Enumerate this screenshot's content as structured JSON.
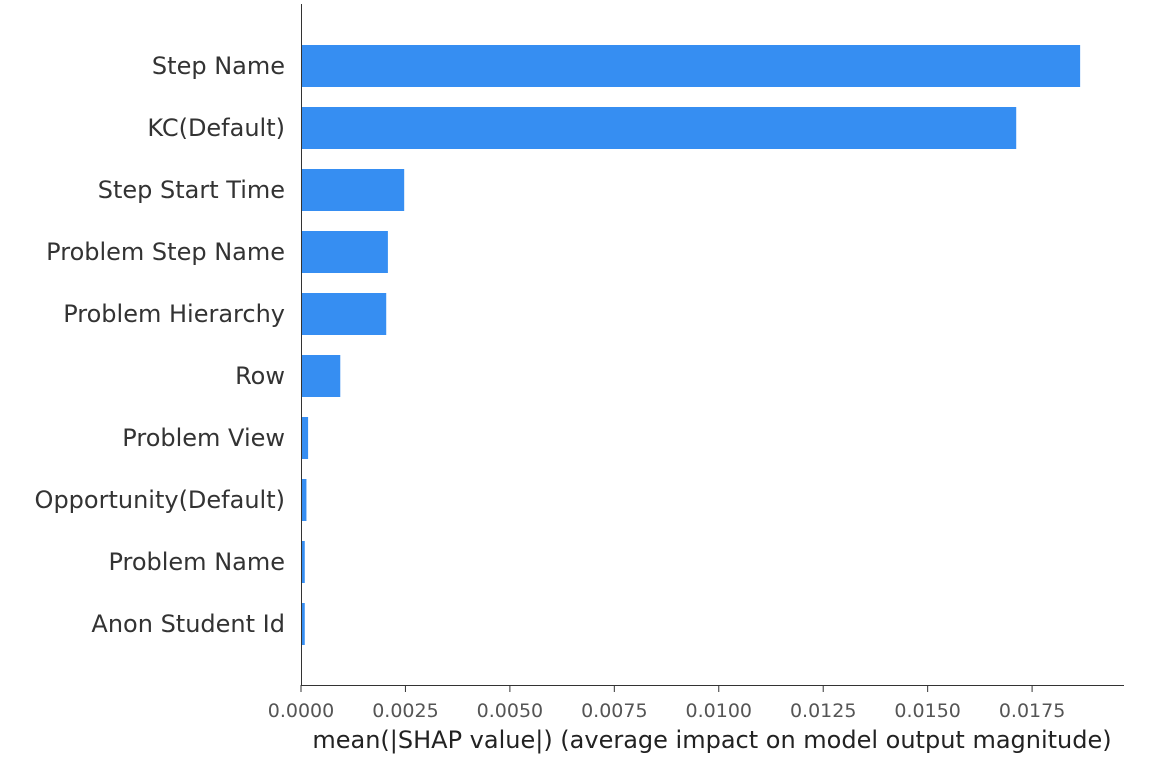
{
  "chart_data": {
    "type": "bar",
    "orientation": "horizontal",
    "categories": [
      "Step Name",
      "KC(Default)",
      "Step Start Time",
      "Problem Step Name",
      "Problem Hierarchy",
      "Row",
      "Problem View",
      "Opportunity(Default)",
      "Problem Name",
      "Anon Student Id"
    ],
    "values": [
      0.01865,
      0.01712,
      0.00247,
      0.00208,
      0.00204,
      0.00094,
      0.00017,
      0.00013,
      9e-05,
      9e-05
    ],
    "xlabel": "mean(|SHAP value|) (average impact on model output magnitude)",
    "ylabel": "",
    "xlim": [
      0,
      0.0197
    ],
    "xticks": [
      "0.0000",
      "0.0025",
      "0.0050",
      "0.0075",
      "0.0100",
      "0.0125",
      "0.0150",
      "0.0175"
    ],
    "grid": false,
    "bar_color": "#368ef2"
  }
}
